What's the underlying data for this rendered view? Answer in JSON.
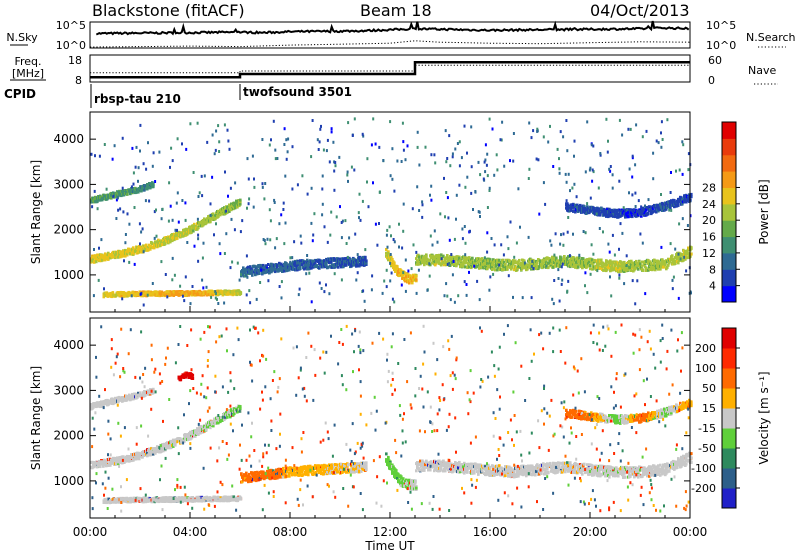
{
  "header": {
    "station": "Blackstone (fitACF)",
    "beam": "Beam 18",
    "date": "04/Oct/2013"
  },
  "chart_data": [
    {
      "type": "line",
      "name": "noise-panel",
      "labels": {
        "left": "N.Sky",
        "right": "N.Search"
      },
      "left_ticks": [
        "10^5",
        "10^0"
      ],
      "right_ticks": [
        "10^5",
        "10^0"
      ],
      "x_range": [
        0,
        24
      ],
      "series": [
        {
          "name": "N.Sky",
          "style": "solid",
          "x": [
            0,
            2,
            4,
            6,
            7,
            8,
            10,
            11,
            12,
            13,
            14,
            16,
            18,
            20,
            22,
            23,
            24
          ],
          "y_log10": [
            3.0,
            3.1,
            3.2,
            3.3,
            3.2,
            3.4,
            3.5,
            3.6,
            3.8,
            4.0,
            3.9,
            3.7,
            3.8,
            3.9,
            4.0,
            4.2,
            4.0
          ]
        },
        {
          "name": "N.Search",
          "style": "dotted",
          "x": [
            0,
            2,
            4,
            6,
            8,
            10,
            12,
            13,
            14,
            16,
            18,
            20,
            22,
            24
          ],
          "y_log10": [
            0.2,
            0.3,
            0.4,
            0.3,
            0.6,
            0.8,
            1.0,
            1.5,
            1.2,
            1.0,
            0.9,
            1.1,
            1.3,
            1.2
          ]
        }
      ]
    },
    {
      "type": "line",
      "name": "frequency-nave-panel",
      "labels": {
        "left": "Freq.",
        "left_unit": "[MHz]",
        "right": "Nave"
      },
      "left_ticks": [
        "18",
        "8"
      ],
      "right_ticks": [
        "60",
        "0"
      ],
      "x_range": [
        0,
        24
      ],
      "series": [
        {
          "name": "Freq.",
          "style": "solid",
          "x": [
            0,
            6.0,
            6.0,
            13.0,
            13.0,
            24
          ],
          "y": [
            9.5,
            9.5,
            10.8,
            10.8,
            15.5,
            15.5
          ]
        },
        {
          "name": "Nave",
          "style": "dotted",
          "x": [
            0,
            6.0,
            6.0,
            13.0,
            13.0,
            24
          ],
          "y": [
            20,
            20,
            24,
            24,
            38,
            38
          ]
        }
      ]
    },
    {
      "type": "table",
      "name": "cpid-panel",
      "label": "CPID",
      "programs": [
        {
          "start_hour": 0.0,
          "label": "rbsp-tau 210"
        },
        {
          "start_hour": 6.0,
          "label": "twofsound 3501"
        }
      ]
    },
    {
      "type": "heatmap",
      "name": "power-rti",
      "ylabel": "Slant Range [km]",
      "y_ticks": [
        1000,
        2000,
        3000,
        4000
      ],
      "y_range": [
        180,
        4600
      ],
      "x_range": [
        0,
        24
      ],
      "colorbar": {
        "label": "Power [dB]",
        "ticks": [
          4,
          8,
          12,
          16,
          20,
          24,
          28
        ],
        "colors": [
          "#0000ff",
          "#1f3fb0",
          "#2e6a93",
          "#3f8f72",
          "#64aa4a",
          "#a8c43a",
          "#e8c31c",
          "#f59a16",
          "#f26a10",
          "#e93b0c",
          "#e00000"
        ]
      },
      "bands": [
        {
          "t": [
            0,
            1,
            2,
            3,
            4,
            5,
            6
          ],
          "range": [
            1340,
            1440,
            1570,
            1760,
            2010,
            2320,
            2620
          ],
          "width": 150,
          "value": [
            26,
            25,
            25,
            24,
            22,
            21,
            19
          ]
        },
        {
          "t": [
            0.5,
            2,
            3.5,
            5,
            6
          ],
          "range": [
            560,
            580,
            590,
            600,
            610
          ],
          "width": 90,
          "value": [
            25,
            27,
            29,
            26,
            24
          ]
        },
        {
          "t": [
            0,
            1,
            2,
            2.5
          ],
          "range": [
            2640,
            2780,
            2900,
            3000
          ],
          "width": 110,
          "value": [
            16,
            15,
            14,
            13
          ]
        },
        {
          "t": [
            6,
            7,
            8,
            9,
            10,
            11
          ],
          "range": [
            1060,
            1130,
            1200,
            1240,
            1270,
            1300
          ],
          "width": 200,
          "value": [
            10,
            9,
            9,
            8,
            8,
            7
          ]
        },
        {
          "t": [
            11.8,
            12.1,
            12.4,
            12.7,
            13.0
          ],
          "range": [
            1500,
            1200,
            1000,
            920,
            900
          ],
          "width": 200,
          "value": [
            22,
            26,
            28,
            27,
            26
          ]
        },
        {
          "t": [
            13,
            14,
            15,
            16,
            17,
            18,
            19,
            20,
            21,
            22,
            23,
            24
          ],
          "range": [
            1330,
            1330,
            1280,
            1230,
            1200,
            1260,
            1300,
            1240,
            1180,
            1200,
            1250,
            1520
          ],
          "width": 230,
          "value": [
            21,
            22,
            21,
            20,
            22,
            21,
            20,
            22,
            23,
            21,
            22,
            23
          ]
        },
        {
          "t": [
            19,
            20,
            21,
            22,
            23,
            24
          ],
          "range": [
            2500,
            2420,
            2350,
            2380,
            2520,
            2720
          ],
          "width": 170,
          "value": [
            6,
            7,
            6,
            5,
            7,
            6
          ]
        }
      ]
    },
    {
      "type": "heatmap",
      "name": "velocity-rti",
      "ylabel": "Slant Range [km]",
      "xlabel": "Time UT",
      "x_tick_labels": [
        "00:00",
        "04:00",
        "08:00",
        "12:00",
        "16:00",
        "20:00",
        "00:00"
      ],
      "x_ticks": [
        0,
        4,
        8,
        12,
        16,
        20,
        24
      ],
      "y_ticks": [
        1000,
        2000,
        3000,
        4000
      ],
      "y_range": [
        180,
        4600
      ],
      "x_range": [
        0,
        24
      ],
      "colorbar": {
        "label": "Velocity [m s⁻¹]",
        "ticks": [
          200,
          100,
          50,
          15,
          -15,
          -50,
          -100,
          -200
        ],
        "colors": [
          "#2020c8",
          "#2d5f8a",
          "#2e8a5e",
          "#5fcf3a",
          "#c8c8c8",
          "#ffb000",
          "#ff6a00",
          "#ff2a00",
          "#e00000"
        ]
      },
      "bands": [
        {
          "t": [
            0,
            1,
            2,
            3,
            4,
            5,
            6
          ],
          "range": [
            1340,
            1440,
            1570,
            1760,
            2010,
            2320,
            2620
          ],
          "width": 150,
          "value": [
            0,
            0,
            0,
            0,
            5,
            10,
            20
          ]
        },
        {
          "t": [
            0.5,
            2,
            3.5,
            5,
            6
          ],
          "range": [
            560,
            580,
            590,
            600,
            610
          ],
          "width": 90,
          "value": [
            0,
            0,
            0,
            0,
            0
          ]
        },
        {
          "t": [
            0,
            1,
            2,
            2.5
          ],
          "range": [
            2640,
            2780,
            2900,
            3000
          ],
          "width": 110,
          "value": [
            0,
            0,
            0,
            0
          ]
        },
        {
          "t": [
            3.5,
            3.8,
            4.1
          ],
          "range": [
            3250,
            3350,
            3300
          ],
          "width": 100,
          "value": [
            -230,
            -240,
            -230
          ]
        },
        {
          "t": [
            6,
            7,
            8,
            9,
            10,
            11
          ],
          "range": [
            1060,
            1130,
            1200,
            1240,
            1270,
            1300
          ],
          "width": 200,
          "value": [
            -60,
            -80,
            -40,
            -30,
            -20,
            -10
          ]
        },
        {
          "t": [
            11.8,
            12.1,
            12.4,
            12.7,
            13.0
          ],
          "range": [
            1500,
            1200,
            1000,
            920,
            900
          ],
          "width": 200,
          "value": [
            40,
            35,
            30,
            20,
            10
          ]
        },
        {
          "t": [
            13,
            14,
            15,
            16,
            17,
            18,
            19,
            20,
            21,
            22,
            23,
            24
          ],
          "range": [
            1330,
            1330,
            1280,
            1230,
            1200,
            1260,
            1300,
            1240,
            1180,
            1200,
            1250,
            1520
          ],
          "width": 230,
          "value": [
            0,
            0,
            5,
            -5,
            0,
            0,
            -5,
            0,
            5,
            0,
            0,
            0
          ]
        },
        {
          "t": [
            19,
            20,
            21,
            22,
            23,
            24
          ],
          "range": [
            2500,
            2420,
            2350,
            2380,
            2520,
            2720
          ],
          "width": 170,
          "value": [
            -70,
            -60,
            40,
            -80,
            20,
            -50
          ]
        }
      ]
    }
  ]
}
